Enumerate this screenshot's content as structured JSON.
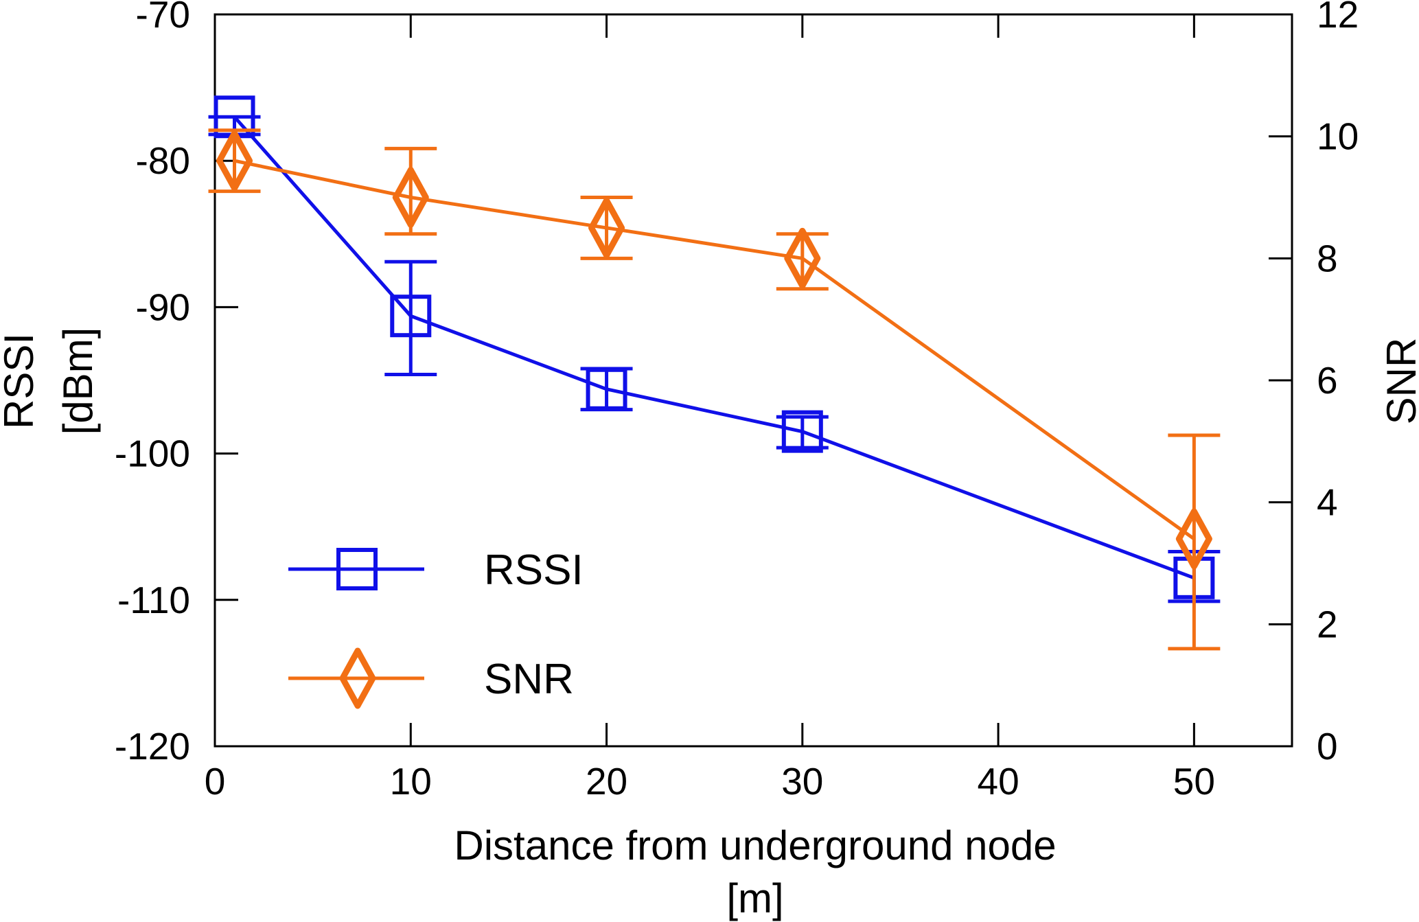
{
  "chart_data": {
    "type": "line",
    "title": "",
    "xlabel": [
      "Distance from underground node",
      "[m]"
    ],
    "ylabel_left": [
      "RSSI",
      "[dBm]"
    ],
    "ylabel_right": "SNR",
    "xlim": [
      0,
      55
    ],
    "ylim_left": [
      -120,
      -70
    ],
    "ylim_right": [
      0,
      12
    ],
    "x_ticks": [
      "0",
      "10",
      "20",
      "30",
      "40",
      "50"
    ],
    "y_left_ticks": [
      "-70",
      "-80",
      "-90",
      "-100",
      "-110",
      "-120"
    ],
    "y_right_ticks": [
      "12",
      "10",
      "8",
      "6",
      "4",
      "2",
      "0"
    ],
    "grid": false,
    "legend_position": "bottom-left",
    "series": [
      {
        "name": "RSSI",
        "axis": "left",
        "marker": "square",
        "color": "#1010e8",
        "x": [
          1,
          10,
          20,
          30,
          50
        ],
        "values": [
          -77,
          -90.6,
          -95.6,
          -98.5,
          -108.5
        ],
        "error_low": [
          -78.2,
          -94.6,
          -97.0,
          -99.6,
          -110.1
        ],
        "error_high": [
          -77.0,
          -86.9,
          -94.2,
          -97.5,
          -106.7
        ]
      },
      {
        "name": "SNR",
        "axis": "right",
        "marker": "diamond",
        "color": "#f26f14",
        "x": [
          1,
          10,
          20,
          30,
          50
        ],
        "values": [
          9.6,
          9.0,
          8.5,
          8.0,
          3.4
        ],
        "error_low": [
          9.1,
          8.4,
          8.0,
          7.5,
          1.6
        ],
        "error_high": [
          10.1,
          9.8,
          9.0,
          8.4,
          5.1
        ]
      }
    ]
  }
}
